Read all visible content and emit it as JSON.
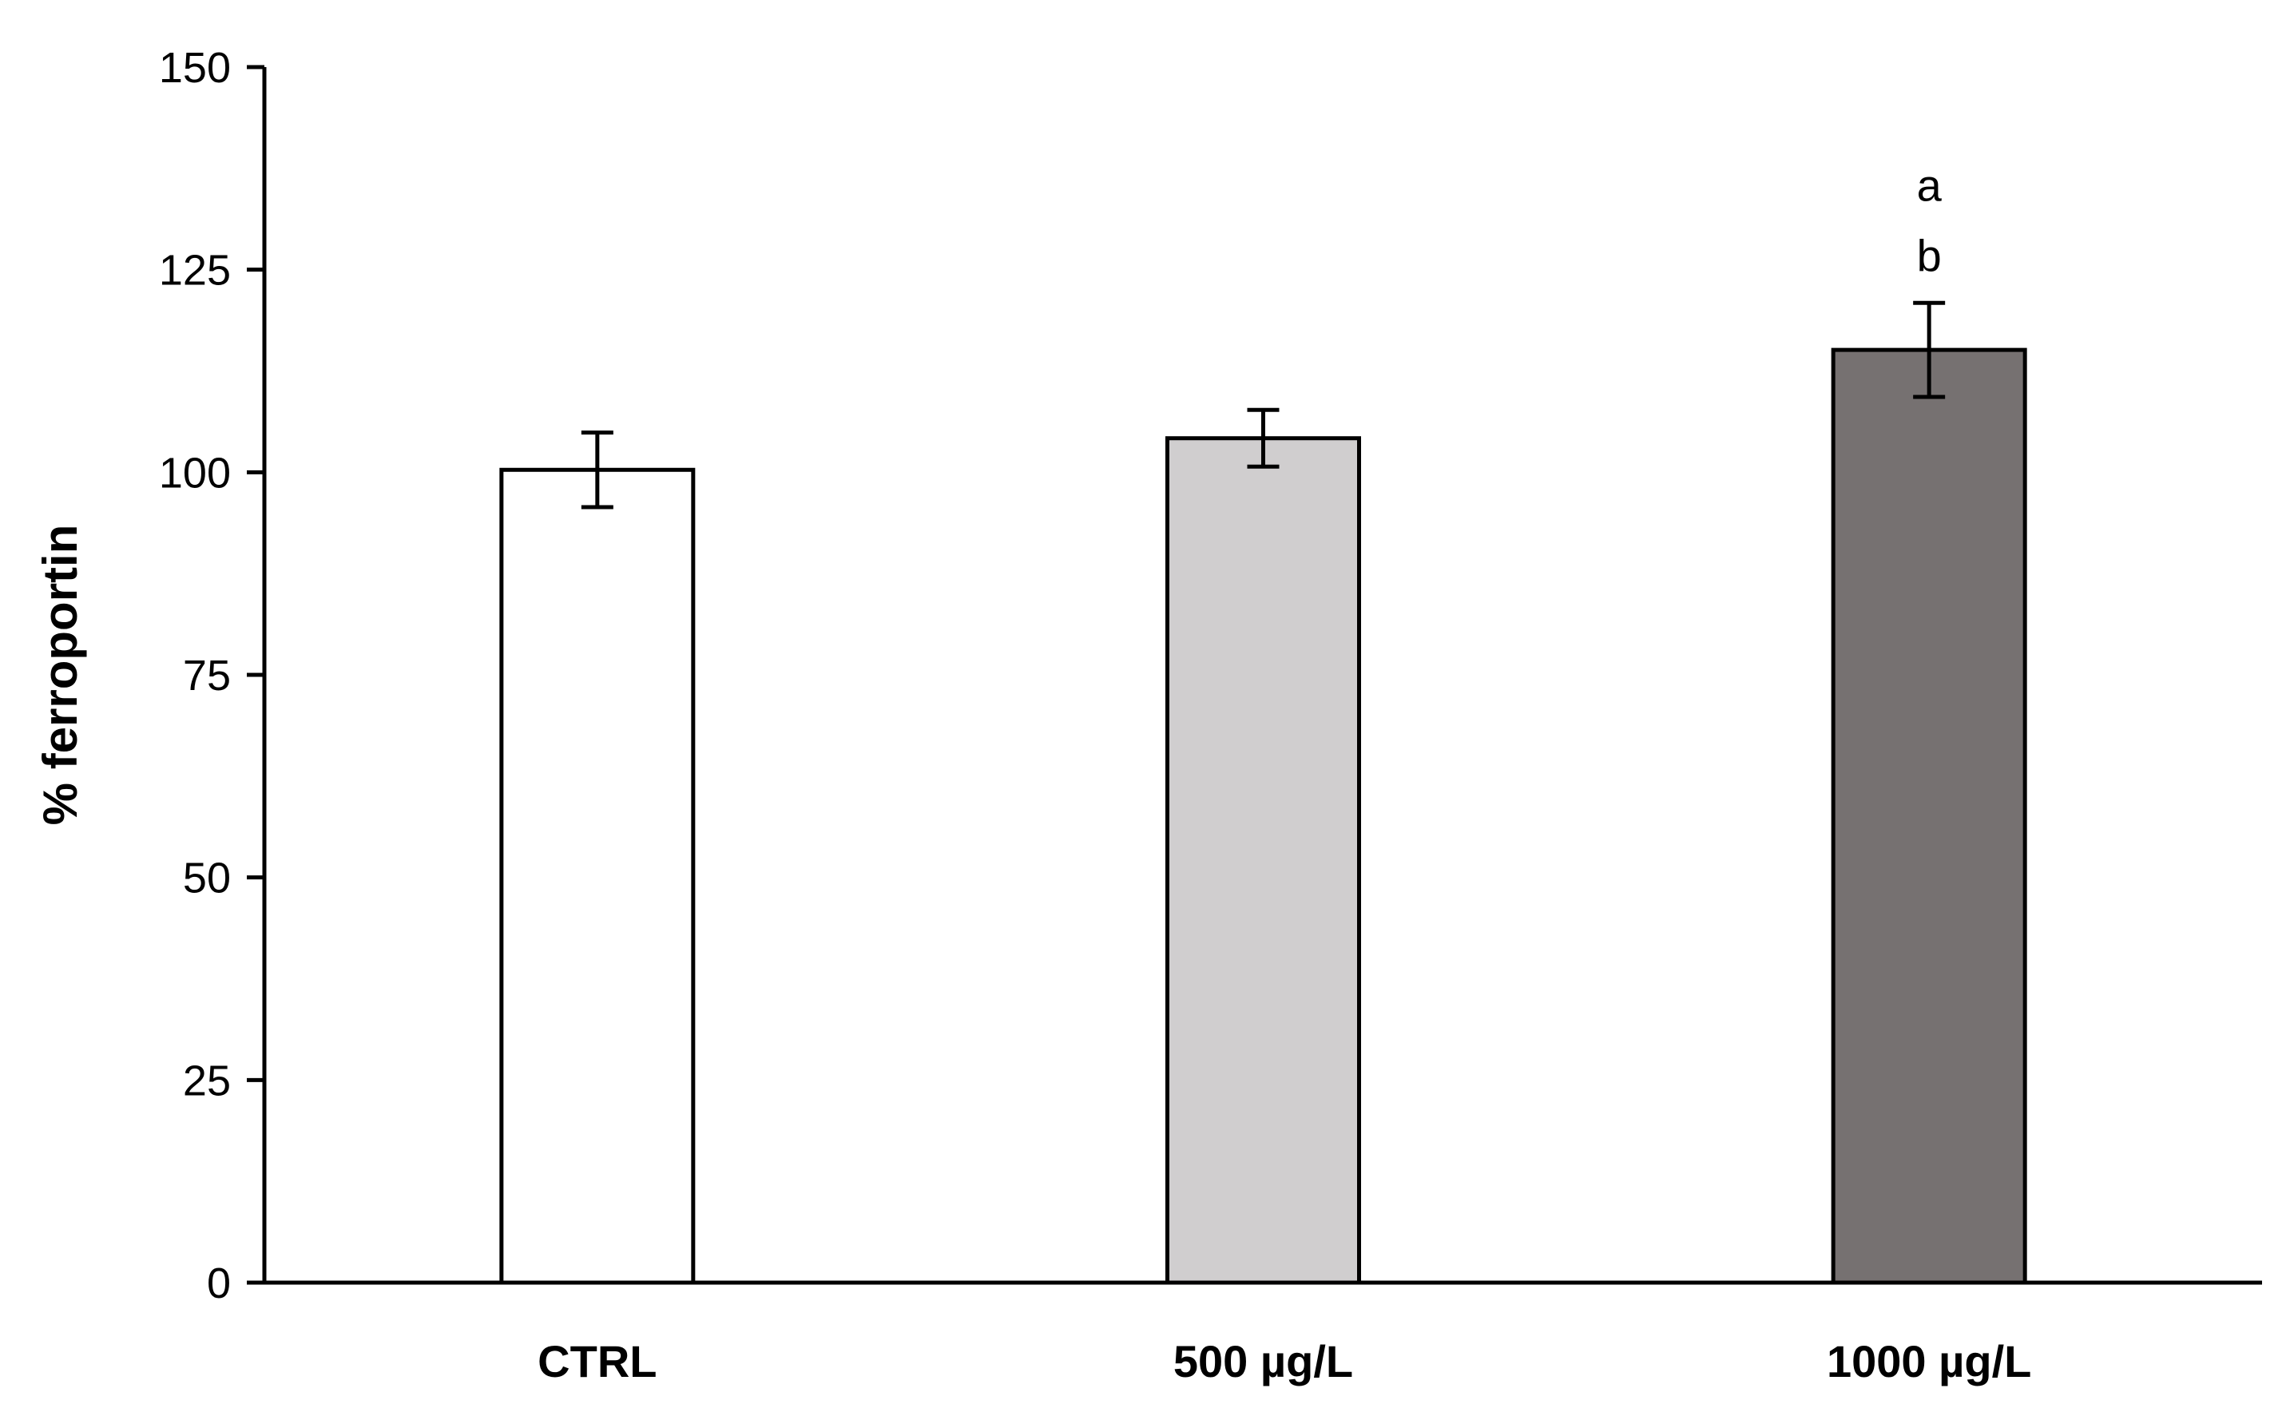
{
  "chart_data": {
    "type": "bar",
    "title": "",
    "xlabel": "",
    "ylabel": "% ferroportin",
    "ylim": [
      0,
      150
    ],
    "yticks": [
      "0",
      "25",
      "50",
      "75",
      "100",
      "125",
      "150"
    ],
    "categories": [
      "CTRL",
      "500 µg/L",
      "1000 µg/L"
    ],
    "values": [
      100.3,
      104.2,
      115.1
    ],
    "errors": [
      4.6,
      3.5,
      5.8
    ],
    "colors": [
      "#FFFFFF",
      "#D0CECF",
      "#767171"
    ],
    "annotations": [
      {
        "category_index": 2,
        "lines": [
          "a",
          "b"
        ]
      }
    ],
    "grid": false
  }
}
